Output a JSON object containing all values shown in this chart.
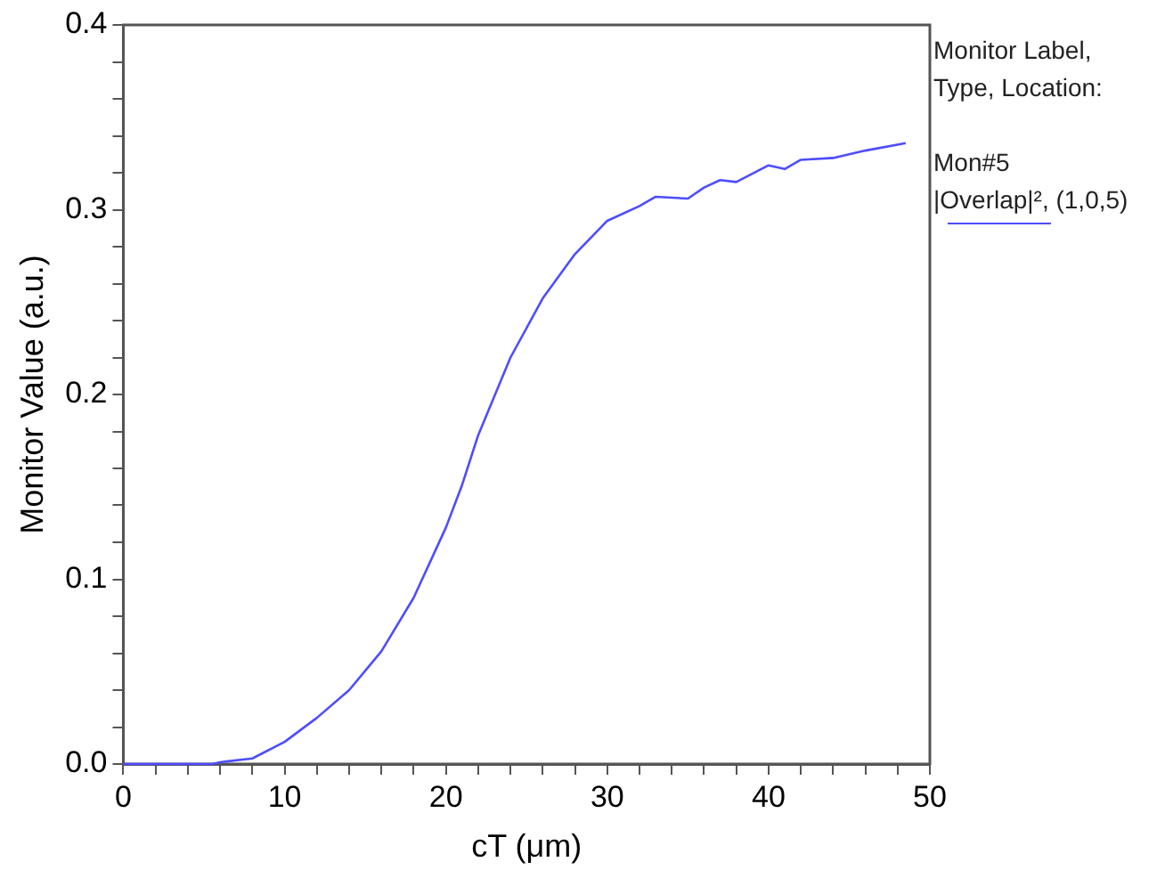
{
  "chart_data": {
    "type": "line",
    "xlabel": "cT (μm)",
    "ylabel": "Monitor Value (a.u.)",
    "legend_title": "Monitor Label,\nType, Location:",
    "legend": "right",
    "grid": false,
    "marker": "none",
    "line_style": "solid",
    "xlim": [
      0,
      50
    ],
    "ylim": [
      0,
      0.4
    ],
    "xticks": [
      0,
      {
        "value": 2,
        "label": null
      },
      {
        "value": 4,
        "label": null
      },
      {
        "value": 6,
        "label": null
      },
      {
        "value": 8,
        "label": null
      },
      10,
      {
        "value": 12,
        "label": null
      },
      {
        "value": 14,
        "label": null
      },
      {
        "value": 16,
        "label": null
      },
      {
        "value": 18,
        "label": null
      },
      20,
      {
        "value": 22,
        "label": null
      },
      {
        "value": 24,
        "label": null
      },
      {
        "value": 26,
        "label": null
      },
      {
        "value": 28,
        "label": null
      },
      30,
      {
        "value": 32,
        "label": null
      },
      {
        "value": 34,
        "label": null
      },
      {
        "value": 36,
        "label": null
      },
      {
        "value": 38,
        "label": null
      },
      40,
      {
        "value": 42,
        "label": null
      },
      {
        "value": 44,
        "label": null
      },
      {
        "value": 46,
        "label": null
      },
      {
        "value": 48,
        "label": null
      },
      50
    ],
    "yticks": [
      {
        "value": 0,
        "label": "0.0"
      },
      {
        "value": 0.02,
        "label": null
      },
      {
        "value": 0.04,
        "label": null
      },
      {
        "value": 0.06,
        "label": null
      },
      {
        "value": 0.08,
        "label": null
      },
      0.1,
      {
        "value": 0.12,
        "label": null
      },
      {
        "value": 0.14,
        "label": null
      },
      {
        "value": 0.16,
        "label": null
      },
      {
        "value": 0.18,
        "label": null
      },
      0.2,
      {
        "value": 0.22,
        "label": null
      },
      {
        "value": 0.24,
        "label": null
      },
      {
        "value": 0.26,
        "label": null
      },
      {
        "value": 0.28,
        "label": null
      },
      0.3,
      {
        "value": 0.32,
        "label": null
      },
      {
        "value": 0.34,
        "label": null
      },
      {
        "value": 0.36,
        "label": null
      },
      {
        "value": 0.38,
        "label": null
      },
      0.4
    ],
    "series": [
      {
        "name": "Mon#5\n|Overlap|², (1,0,5)",
        "color": "#4d4dff",
        "x": [
          0,
          2,
          4,
          5.5,
          6,
          8,
          10,
          12,
          14,
          16,
          18,
          20,
          21,
          22,
          24,
          26,
          28,
          30,
          32,
          33,
          35,
          36,
          37,
          38,
          40,
          41,
          42,
          44,
          46,
          48.5
        ],
        "values": [
          0,
          0,
          0,
          0,
          0.001,
          0.003,
          0.012,
          0.025,
          0.04,
          0.061,
          0.09,
          0.128,
          0.151,
          0.178,
          0.22,
          0.252,
          0.276,
          0.294,
          0.302,
          0.307,
          0.306,
          0.312,
          0.316,
          0.315,
          0.324,
          0.322,
          0.327,
          0.328,
          0.332,
          0.336
        ]
      }
    ]
  }
}
